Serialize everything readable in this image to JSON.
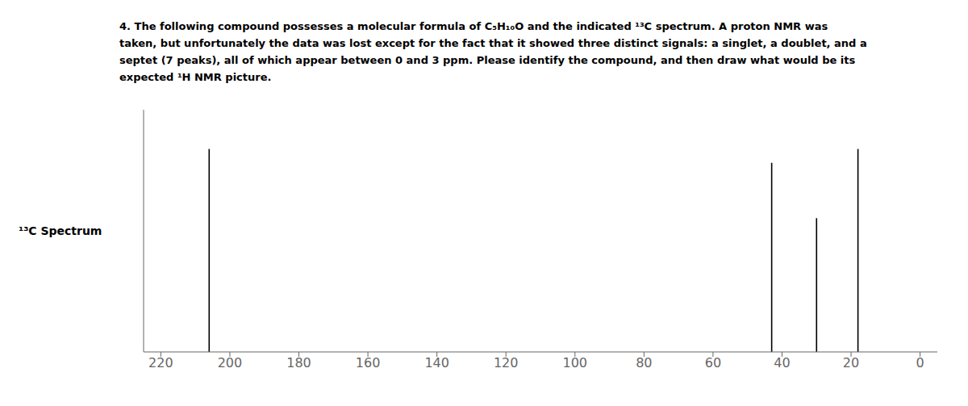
{
  "chart_data": {
    "type": "stem",
    "title": [
      "4.  The following compound possesses a molecular formula of C₅H₁₀O and the indicated ¹³C spectrum.  A proton NMR was",
      "taken, but unfortunately the data was lost except for the fact that it showed three distinct signals: a singlet, a doublet, and a",
      "septet (7 peaks), all of which appear between 0 and 3 ppm.  Please identify the compound, and then draw what would be its",
      "expected ¹H NMR picture."
    ],
    "ylabel": "¹³C Spectrum",
    "x": [
      206,
      43,
      30,
      18
    ],
    "values": [
      0.88,
      0.82,
      0.58,
      0.88
    ],
    "color": "#000000",
    "xlim": [
      225,
      -5
    ],
    "ylim": [
      0,
      1.05
    ],
    "xticks": [
      220,
      200,
      180,
      160,
      140,
      120,
      100,
      80,
      60,
      40,
      20,
      0
    ],
    "tick_labels": "x",
    "grid": false
  }
}
